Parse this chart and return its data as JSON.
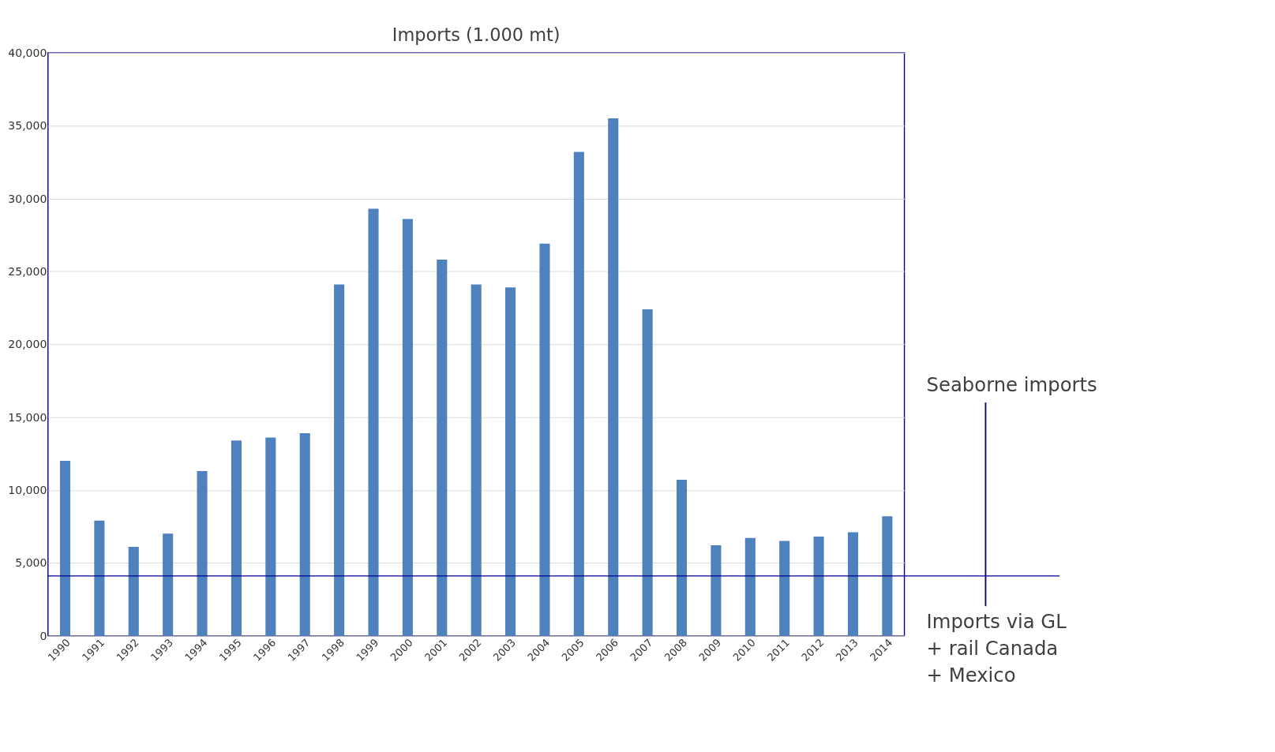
{
  "chart_data": {
    "type": "bar",
    "title": "Imports (1.000 mt)",
    "categories": [
      "1990",
      "1991",
      "1992",
      "1993",
      "1994",
      "1995",
      "1996",
      "1997",
      "1998",
      "1999",
      "2000",
      "2001",
      "2002",
      "2003",
      "2004",
      "2005",
      "2006",
      "2007",
      "2008",
      "2009",
      "2010",
      "2011",
      "2012",
      "2013",
      "2014"
    ],
    "values": [
      12000,
      7900,
      6100,
      7000,
      11300,
      13400,
      13600,
      13900,
      24100,
      29300,
      28600,
      25800,
      24100,
      23900,
      26900,
      33200,
      35500,
      22400,
      10700,
      6200,
      6700,
      6500,
      6800,
      7100,
      8200
    ],
    "color": "#4f81bd",
    "ylim": [
      0,
      40000
    ],
    "yticks": [
      0,
      {
        "value": 5000,
        "label": "5,000"
      },
      {
        "value": 10000,
        "label": "10,000"
      },
      {
        "value": 15000,
        "label": "15,000"
      },
      {
        "value": 20000,
        "label": "20,000"
      },
      {
        "value": 25000,
        "label": "25,000"
      },
      {
        "value": 30000,
        "label": "30,000"
      },
      {
        "value": 35000,
        "label": "35,000"
      },
      {
        "value": 40000,
        "label": "40,000"
      }
    ],
    "grid": "y",
    "ref_lines": [
      {
        "axis": "y",
        "value": 4100,
        "color": "#00008b"
      }
    ],
    "annotations": [
      "Seaborne imports",
      "Imports via GL + rail Canada + Mexico"
    ]
  }
}
